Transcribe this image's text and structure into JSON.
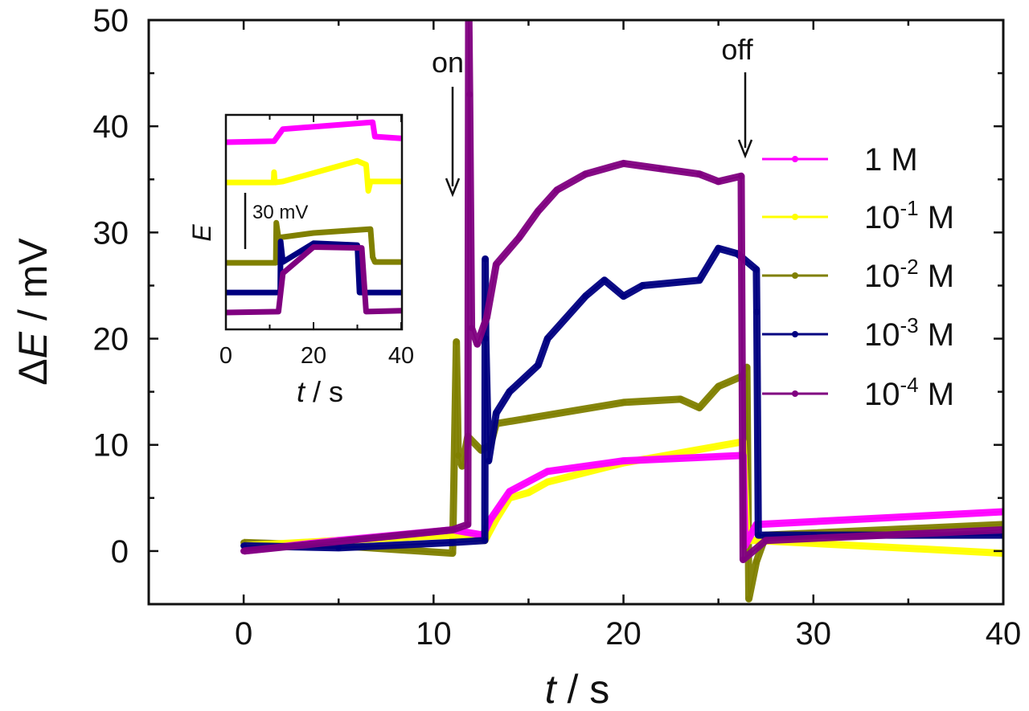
{
  "chart_data": [
    {
      "type": "line",
      "xlabel": {
        "var": "t",
        "unit": " / s"
      },
      "ylabel": {
        "prefix": "Δ",
        "var": "E",
        "unit": " / mV"
      },
      "xlim": [
        -5,
        40
      ],
      "ylim": [
        -5,
        50
      ],
      "xticks": [
        "0",
        "10",
        "20",
        "30",
        "40"
      ],
      "yticks": [
        "0",
        "10",
        "20",
        "30",
        "40",
        "50"
      ],
      "grid": false,
      "legend": "right",
      "annotations": [
        {
          "text": "on",
          "x": 11
        },
        {
          "text": "off",
          "x": 26.3
        }
      ],
      "series": [
        {
          "name": {
            "base": "1",
            "exp": "",
            "unit": " M"
          },
          "color": "#ff00ff",
          "x": [
            0,
            5,
            11,
            12.6,
            13,
            14,
            16,
            20,
            26.3,
            26.4,
            27,
            40
          ],
          "y": [
            0,
            1,
            2,
            1.5,
            3,
            5.6,
            7.5,
            8.5,
            9,
            0.5,
            2.5,
            3.7
          ]
        },
        {
          "name": {
            "base": "10",
            "exp": "-1",
            "unit": " M"
          },
          "color": "#ffff00",
          "x": [
            0,
            5,
            11,
            12.7,
            13.3,
            14,
            15,
            16,
            20,
            26.3,
            26.5,
            27,
            40
          ],
          "y": [
            0.5,
            1,
            1.5,
            1,
            3,
            5,
            5.5,
            6.5,
            8.3,
            10.3,
            1,
            1,
            -0.2
          ]
        },
        {
          "name": {
            "base": "10",
            "exp": "-2",
            "unit": " M"
          },
          "color": "#808000",
          "x": [
            0,
            5,
            11,
            11.2,
            11.3,
            11.5,
            11.8,
            12.5,
            13,
            13.3,
            15,
            20,
            23,
            24,
            25,
            26.3,
            26.5,
            26.6,
            27,
            27.5,
            40
          ],
          "y": [
            0.8,
            0.5,
            -0.2,
            19.7,
            9,
            8,
            10.8,
            9.5,
            10,
            12,
            12.5,
            14,
            14.3,
            13.5,
            15.5,
            16.5,
            17.3,
            -4.5,
            -1,
            1.5,
            2.5
          ]
        },
        {
          "name": {
            "base": "10",
            "exp": "-3",
            "unit": " M"
          },
          "color": "#000080",
          "x": [
            0,
            5,
            11,
            12.7,
            12.72,
            12.75,
            12.9,
            13.3,
            14,
            15.5,
            16,
            18,
            19,
            20,
            21,
            24,
            25,
            26,
            27,
            27.02,
            27.1,
            30,
            40
          ],
          "y": [
            0.5,
            0.3,
            0.8,
            1,
            27.5,
            20,
            8.5,
            13,
            15,
            17.5,
            20,
            24,
            25.5,
            24,
            25,
            25.5,
            28.5,
            28,
            26.5,
            22.5,
            1.5,
            1.5,
            1.5
          ]
        },
        {
          "name": {
            "base": "10",
            "exp": "-4",
            "unit": " M"
          },
          "color": "#800080",
          "x": [
            0,
            11,
            11.8,
            11.85,
            11.9,
            12,
            12.3,
            12.8,
            13.3,
            14.5,
            15.5,
            16.5,
            18,
            20,
            22,
            24,
            25,
            26.2,
            26.3,
            27.5,
            40
          ],
          "y": [
            0,
            2,
            2.5,
            52,
            43,
            21,
            19.5,
            22,
            27,
            29.5,
            32,
            34,
            35.5,
            36.5,
            36,
            35.5,
            34.8,
            35.3,
            -0.8,
            1,
            2
          ]
        }
      ]
    },
    {
      "type": "line",
      "xlabel": {
        "var": "t",
        "unit": " / s"
      },
      "ylabel": {
        "var": "E"
      },
      "xlim": [
        0,
        40
      ],
      "xticks": [
        "0",
        "20",
        "40"
      ],
      "scale_bar": "30 mV",
      "series": [
        {
          "color": "#ff00ff",
          "x": [
            0,
            11,
            13,
            33.5,
            34,
            40
          ],
          "y": [
            100,
            100.5,
            107,
            110.7,
            103,
            102
          ]
        },
        {
          "color": "#ffff00",
          "x": [
            0,
            10.9,
            11,
            11.2,
            13,
            30,
            32,
            32.5,
            33,
            40
          ],
          "y": [
            78.5,
            78.5,
            84,
            78.5,
            79,
            90,
            88,
            74,
            79,
            79
          ]
        },
        {
          "color": "#808000",
          "x": [
            0,
            11.4,
            11.5,
            12,
            20,
            33,
            33.5,
            34,
            40
          ],
          "y": [
            35.6,
            35.6,
            57,
            49,
            51.5,
            53.6,
            38.6,
            36,
            36
          ]
        },
        {
          "color": "#000080",
          "x": [
            0,
            12.4,
            12.5,
            13,
            20,
            30,
            30.5,
            40
          ],
          "y": [
            19.7,
            19.7,
            47,
            36,
            46,
            45,
            19.7,
            19.7
          ]
        },
        {
          "color": "#800080",
          "x": [
            0,
            12,
            13,
            20,
            31,
            32,
            40
          ],
          "y": [
            9,
            9.5,
            30,
            44,
            43.5,
            9.5,
            10
          ]
        }
      ]
    }
  ]
}
